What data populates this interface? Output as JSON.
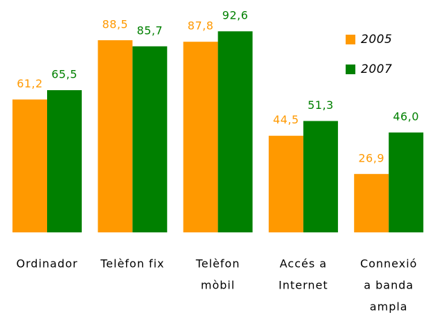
{
  "chart_data": {
    "type": "bar",
    "categories": [
      [
        "Ordinador"
      ],
      [
        "Telèfon fix"
      ],
      [
        "Telèfon",
        "mòbil"
      ],
      [
        "Accés a",
        "Internet"
      ],
      [
        "Connexió",
        "a banda",
        "ampla"
      ]
    ],
    "series": [
      {
        "name": "2005",
        "color": "#ff9900",
        "values": [
          61.2,
          88.5,
          87.8,
          44.5,
          26.9
        ],
        "value_labels": [
          "61,2",
          "88,5",
          "87,8",
          "44,5",
          "26,9"
        ]
      },
      {
        "name": "2007",
        "color": "#008000",
        "values": [
          65.5,
          85.7,
          92.6,
          51.3,
          46.0
        ],
        "value_labels": [
          "65,5",
          "85,7",
          "92,6",
          "51,3",
          "46,0"
        ]
      }
    ],
    "ylim": [
      0,
      100
    ]
  }
}
